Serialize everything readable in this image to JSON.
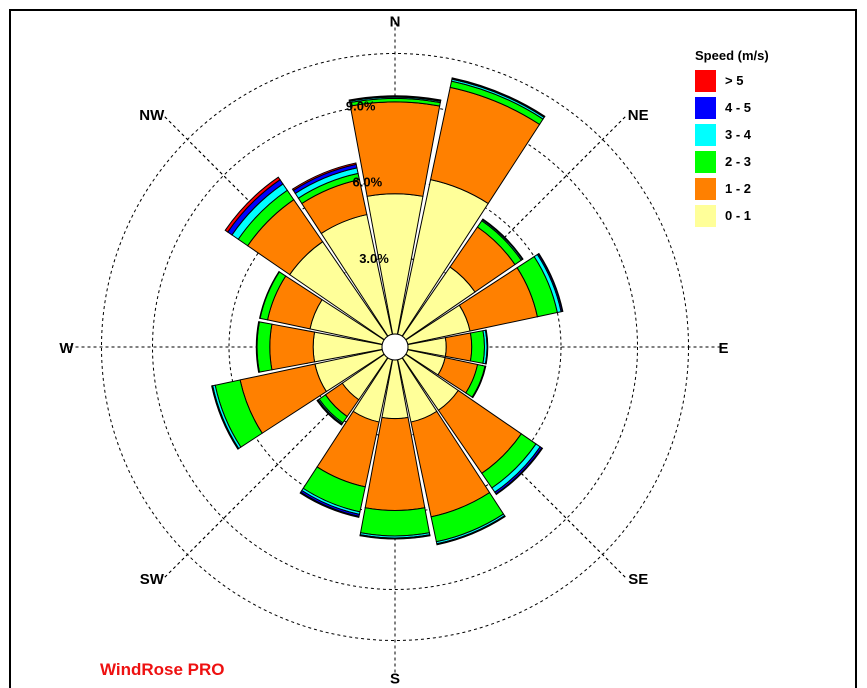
{
  "brand": "WindRose PRO",
  "chart_data": {
    "type": "windrose",
    "directions": [
      "N",
      "NNE",
      "NE",
      "ENE",
      "E",
      "ESE",
      "SE",
      "SSE",
      "S",
      "SSW",
      "SW",
      "WSW",
      "W",
      "WNW",
      "NW",
      "NNW"
    ],
    "direction_labels": [
      {
        "key": "N",
        "text": "N"
      },
      {
        "key": "NE",
        "text": "NE"
      },
      {
        "key": "E",
        "text": "E"
      },
      {
        "key": "SE",
        "text": "SE"
      },
      {
        "key": "S",
        "text": "S"
      },
      {
        "key": "SW",
        "text": "SW"
      },
      {
        "key": "W",
        "text": "W"
      },
      {
        "key": "NW",
        "text": "NW"
      }
    ],
    "unit": "%",
    "rings": [
      {
        "value": 3.0,
        "label": "3.0%"
      },
      {
        "value": 6.0,
        "label": "6.0%"
      },
      {
        "value": 9.0,
        "label": "9.0%"
      }
    ],
    "rlim": [
      0,
      11
    ],
    "calm_circle": true,
    "legend": {
      "title": "Speed (m/s)",
      "placement": "top-right",
      "entries": [
        {
          "label": "> 5",
          "color": "#ff0000"
        },
        {
          "label": "4 - 5",
          "color": "#0000ff"
        },
        {
          "label": "3 - 4",
          "color": "#00ffff"
        },
        {
          "label": "2 - 3",
          "color": "#00ff00"
        },
        {
          "label": "1 - 2",
          "color": "#ff8000"
        },
        {
          "label": "0 - 1",
          "color": "#ffff99"
        }
      ]
    },
    "series": [
      {
        "name": "0 - 1",
        "color": "#ffff99",
        "values": [
          5.5,
          6.2,
          3.3,
          2.5,
          1.5,
          1.5,
          2.5,
          2.5,
          2.3,
          2.5,
          2.0,
          2.7,
          2.7,
          2.9,
          4.5,
          4.8
        ]
      },
      {
        "name": "1 - 2",
        "color": "#ff8000",
        "values": [
          3.6,
          3.7,
          1.9,
          2.7,
          1.0,
          1.3,
          3.0,
          3.8,
          3.6,
          2.6,
          0.8,
          3.0,
          1.7,
          1.7,
          2.0,
          1.4
        ]
      },
      {
        "name": "2 - 3",
        "color": "#00ff00",
        "values": [
          0.14,
          0.25,
          0.3,
          0.8,
          0.5,
          0.3,
          0.7,
          1.0,
          1.0,
          1.0,
          0.3,
          1.0,
          0.5,
          0.3,
          0.45,
          0.25
        ]
      },
      {
        "name": "3 - 4",
        "color": "#00ffff",
        "values": [
          0.05,
          0.08,
          0.05,
          0.15,
          0.1,
          0.02,
          0.2,
          0.08,
          0.08,
          0.1,
          0.05,
          0.1,
          0.03,
          0.02,
          0.3,
          0.22
        ]
      },
      {
        "name": "4 - 5",
        "color": "#0000ff",
        "values": [
          0.03,
          0.03,
          0.02,
          0.05,
          0.03,
          0.01,
          0.08,
          0.03,
          0.03,
          0.08,
          0.03,
          0.03,
          0.0,
          0.0,
          0.2,
          0.14
        ]
      },
      {
        "name": "> 5",
        "color": "#ff0000",
        "values": [
          0.02,
          0.02,
          0.01,
          0.02,
          0.0,
          0.0,
          0.03,
          0.01,
          0.01,
          0.04,
          0.02,
          0.01,
          0.0,
          0.0,
          0.12,
          0.06
        ]
      }
    ]
  }
}
